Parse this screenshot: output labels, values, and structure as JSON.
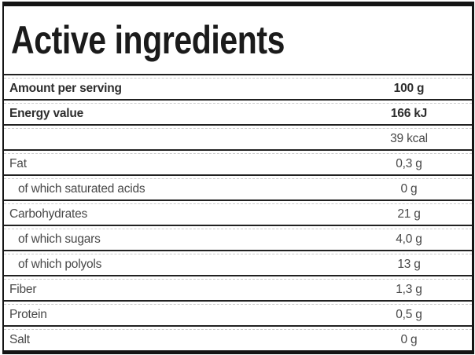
{
  "title": "Active ingredients",
  "table": {
    "rows": [
      {
        "label": "Amount per serving",
        "value": "100 g",
        "bold": true,
        "indent": false
      },
      {
        "label": "Energy value",
        "value": "166 kJ",
        "bold": true,
        "indent": false
      },
      {
        "label": "",
        "value": "39 kcal",
        "bold": false,
        "indent": false
      },
      {
        "label": "Fat",
        "value": "0,3 g",
        "bold": false,
        "indent": false
      },
      {
        "label": "of which saturated acids",
        "value": "0 g",
        "bold": false,
        "indent": true
      },
      {
        "label": "Carbohydrates",
        "value": "21 g",
        "bold": false,
        "indent": false
      },
      {
        "label": "of which sugars",
        "value": "4,0 g",
        "bold": false,
        "indent": true
      },
      {
        "label": "of which polyols",
        "value": "13 g",
        "bold": false,
        "indent": true
      },
      {
        "label": "Fiber",
        "value": "1,3 g",
        "bold": false,
        "indent": false
      },
      {
        "label": "Protein",
        "value": "0,5 g",
        "bold": false,
        "indent": false
      },
      {
        "label": "Salt",
        "value": "0 g",
        "bold": false,
        "indent": false
      }
    ]
  },
  "colors": {
    "border": "#141414",
    "separator": "#212121",
    "dashed": "#cccccc",
    "title_text": "#1b1b1b",
    "bold_text": "#2d2d2d",
    "text": "#484848",
    "background": "#ffffff"
  }
}
